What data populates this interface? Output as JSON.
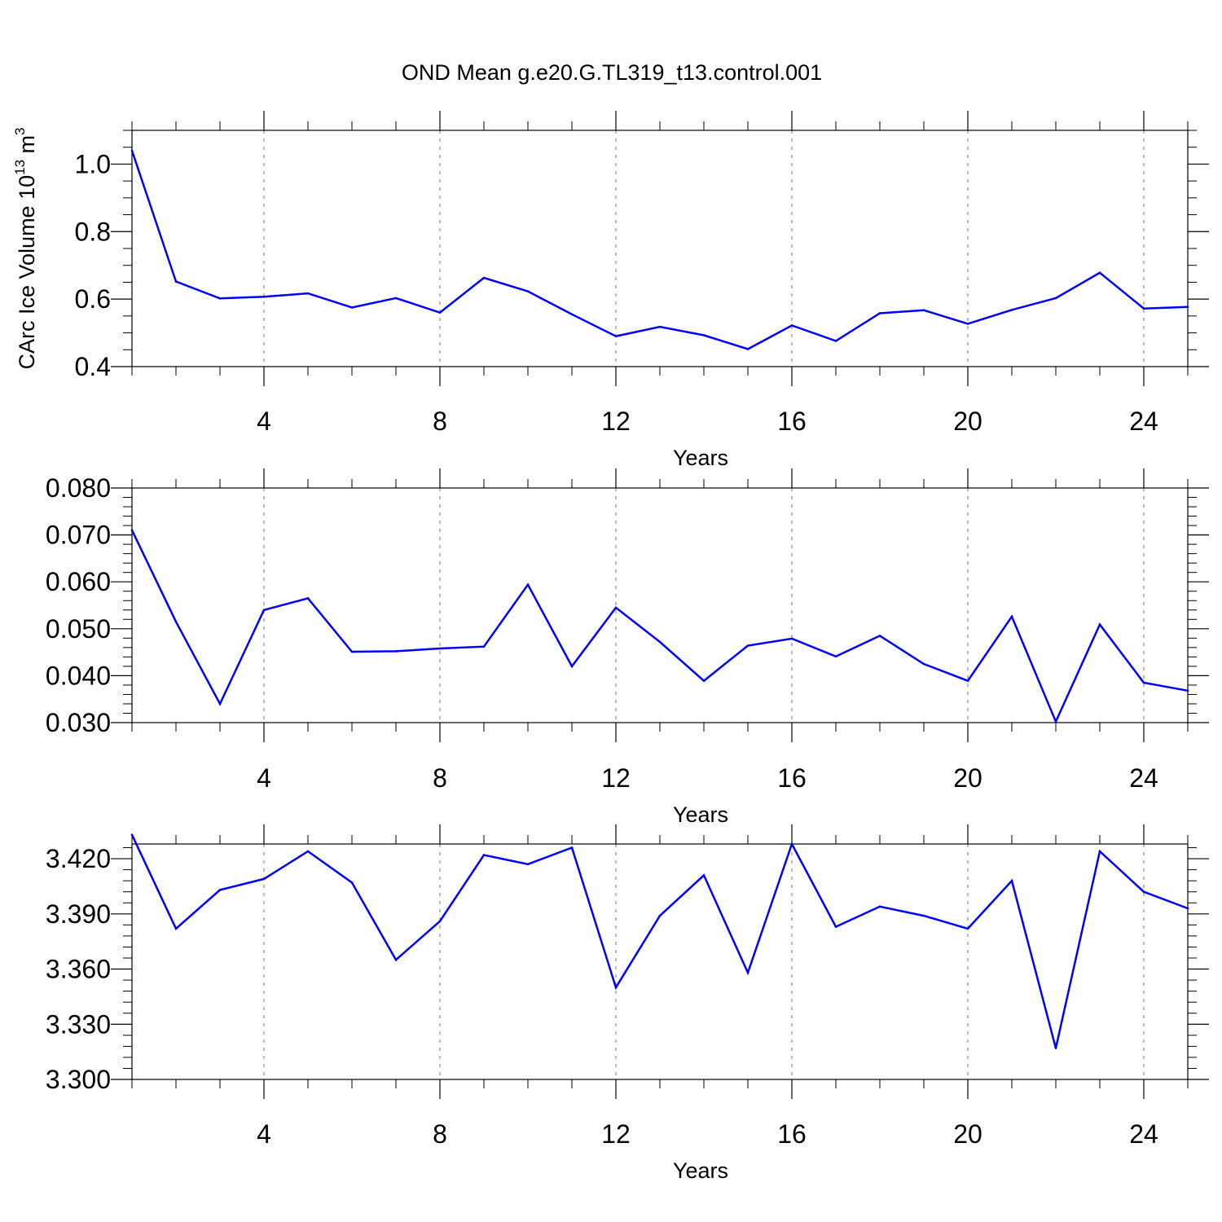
{
  "title": "OND Mean g.e20.G.TL319_t13.control.001",
  "colors": {
    "line": "#0000ff",
    "frame": "#000000",
    "grid": "#777777",
    "background": "#ffffff"
  },
  "chart_data": [
    {
      "type": "line",
      "title": "OND Mean g.e20.G.TL319_t13.control.001",
      "xlabel": "Years",
      "ylabel": "CArc Ice Volume 10^13 m^3",
      "ylabel_parts": {
        "base": "CArc Ice Volume 10",
        "exp": "13",
        "unit": " m",
        "unit_exp": "3"
      },
      "xlim": [
        1,
        25
      ],
      "ylim": [
        0.4,
        1.1
      ],
      "xticks": [
        4,
        8,
        12,
        16,
        20,
        24
      ],
      "xtick_labels": [
        "4",
        "8",
        "12",
        "16",
        "20",
        "24"
      ],
      "yticks": [
        0.4,
        0.6,
        0.8,
        1.0
      ],
      "ytick_labels": [
        "0.4",
        "0.6",
        "0.8",
        "1.0"
      ],
      "x_minor_step": 1,
      "y_minor_step": 0.05,
      "grid": "vertical dashed at major x ticks",
      "x": [
        1,
        2,
        3,
        4,
        5,
        6,
        7,
        8,
        9,
        10,
        11,
        12,
        13,
        14,
        15,
        16,
        17,
        18,
        19,
        20,
        21,
        22,
        23,
        24,
        25
      ],
      "series": [
        {
          "values": [
            1.04,
            0.652,
            0.602,
            0.607,
            0.617,
            0.575,
            0.603,
            0.56,
            0.663,
            0.623,
            0.555,
            0.49,
            0.518,
            0.493,
            0.452,
            0.522,
            0.476,
            0.558,
            0.567,
            0.527,
            0.568,
            0.603,
            0.678,
            0.572,
            0.577
          ]
        }
      ]
    },
    {
      "type": "line",
      "xlabel": "Years",
      "ylabel": "",
      "xlim": [
        1,
        25
      ],
      "ylim": [
        0.03,
        0.08
      ],
      "xticks": [
        4,
        8,
        12,
        16,
        20,
        24
      ],
      "xtick_labels": [
        "4",
        "8",
        "12",
        "16",
        "20",
        "24"
      ],
      "yticks": [
        0.03,
        0.04,
        0.05,
        0.06,
        0.07,
        0.08
      ],
      "ytick_labels": [
        "0.030",
        "0.040",
        "0.050",
        "0.060",
        "0.070",
        "0.080"
      ],
      "x_minor_step": 1,
      "y_minor_step": 0.002,
      "grid": "vertical dashed at major x ticks",
      "x": [
        1,
        2,
        3,
        4,
        5,
        6,
        7,
        8,
        9,
        10,
        11,
        12,
        13,
        14,
        15,
        16,
        17,
        18,
        19,
        20,
        21,
        22,
        23,
        24,
        25
      ],
      "series": [
        {
          "values": [
            0.071,
            0.0515,
            0.034,
            0.054,
            0.0565,
            0.0451,
            0.0452,
            0.0458,
            0.0462,
            0.0594,
            0.042,
            0.0545,
            0.0472,
            0.0389,
            0.0464,
            0.0479,
            0.0441,
            0.0485,
            0.0425,
            0.0389,
            0.0526,
            0.0302,
            0.0509,
            0.0385,
            0.0368
          ]
        }
      ]
    },
    {
      "type": "line",
      "xlabel": "Years",
      "ylabel": "",
      "xlim": [
        1,
        25
      ],
      "ylim": [
        3.3,
        3.428
      ],
      "xticks": [
        4,
        8,
        12,
        16,
        20,
        24
      ],
      "xtick_labels": [
        "4",
        "8",
        "12",
        "16",
        "20",
        "24"
      ],
      "yticks": [
        3.3,
        3.33,
        3.36,
        3.39,
        3.42
      ],
      "ytick_labels": [
        "3.300",
        "3.330",
        "3.360",
        "3.390",
        "3.420"
      ],
      "x_minor_step": 1,
      "y_minor_step": 0.006,
      "grid": "vertical dashed at major x ticks",
      "x": [
        1,
        2,
        3,
        4,
        5,
        6,
        7,
        8,
        9,
        10,
        11,
        12,
        13,
        14,
        15,
        16,
        17,
        18,
        19,
        20,
        21,
        22,
        23,
        24,
        25
      ],
      "series": [
        {
          "values": [
            3.433,
            3.382,
            3.403,
            3.409,
            3.424,
            3.407,
            3.365,
            3.386,
            3.422,
            3.417,
            3.426,
            3.35,
            3.389,
            3.411,
            3.358,
            3.428,
            3.383,
            3.394,
            3.389,
            3.382,
            3.408,
            3.317,
            3.424,
            3.402,
            3.393
          ]
        }
      ]
    }
  ]
}
